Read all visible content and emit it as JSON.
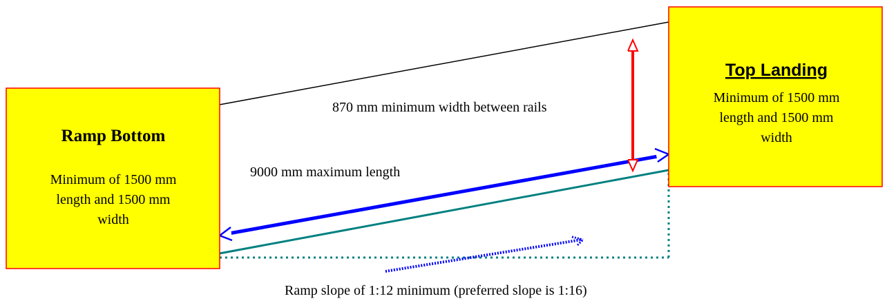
{
  "colors": {
    "box_fill": "#ffff00",
    "box_border": "#ff0000",
    "rail_line": "#000000",
    "ramp_line": "#008080",
    "length_arrow": "#0000ff",
    "width_arrow": "#ff0000",
    "slope_dashes": "#0000ff"
  },
  "ramp_bottom": {
    "title": "Ramp Bottom",
    "line1": "Minimum of 1500 mm",
    "line2": "length and 1500 mm",
    "line3": "width"
  },
  "top_landing": {
    "title": "Top Landing",
    "line1": "Minimum of 1500 mm",
    "line2": "length and 1500 mm",
    "line3": "width"
  },
  "labels": {
    "width_between_rails": "870 mm minimum width between rails",
    "max_length": "9000 mm maximum length",
    "slope": "Ramp slope of 1:12 minimum (preferred slope is 1:16)"
  }
}
